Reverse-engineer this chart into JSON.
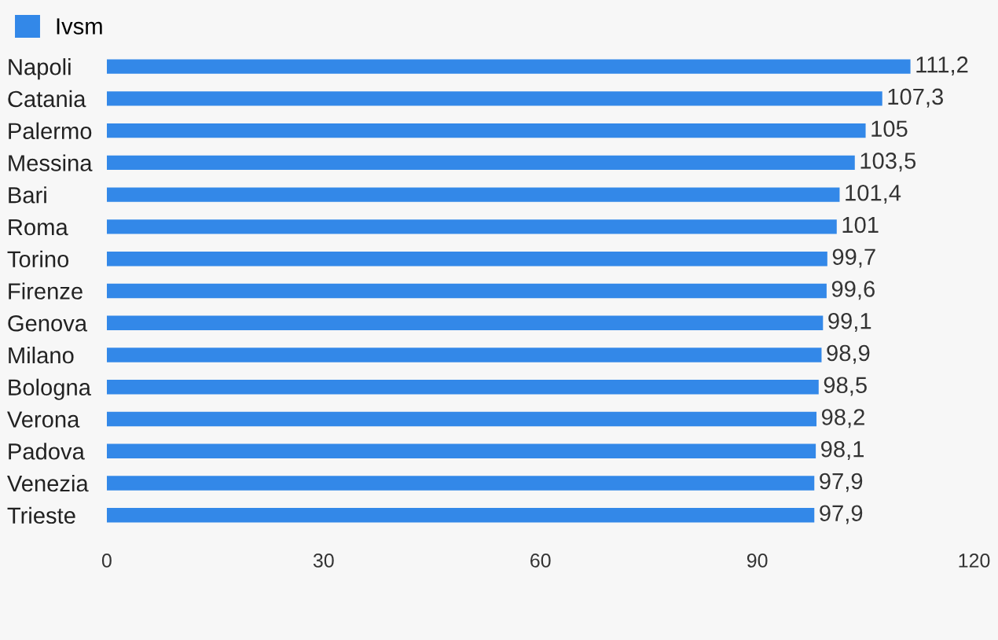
{
  "chart_data": {
    "type": "bar",
    "orientation": "horizontal",
    "categories": [
      "Napoli",
      "Catania",
      "Palermo",
      "Messina",
      "Bari",
      "Roma",
      "Torino",
      "Firenze",
      "Genova",
      "Milano",
      "Bologna",
      "Verona",
      "Padova",
      "Venezia",
      "Trieste"
    ],
    "series": [
      {
        "name": "Ivsm",
        "color": "#3388e8",
        "values": [
          111.2,
          107.3,
          105,
          103.5,
          101.4,
          101,
          99.7,
          99.6,
          99.1,
          98.9,
          98.5,
          98.2,
          98.1,
          97.9,
          97.9
        ],
        "value_labels": [
          "111,2",
          "107,3",
          "105",
          "103,5",
          "101,4",
          "101",
          "99,7",
          "99,6",
          "99,1",
          "98,9",
          "98,5",
          "98,2",
          "98,1",
          "97,9",
          "97,9"
        ]
      }
    ],
    "xlim": [
      0,
      120
    ],
    "xticks": [
      0,
      30,
      60,
      90,
      120
    ],
    "grid": false,
    "legend": "top left"
  }
}
